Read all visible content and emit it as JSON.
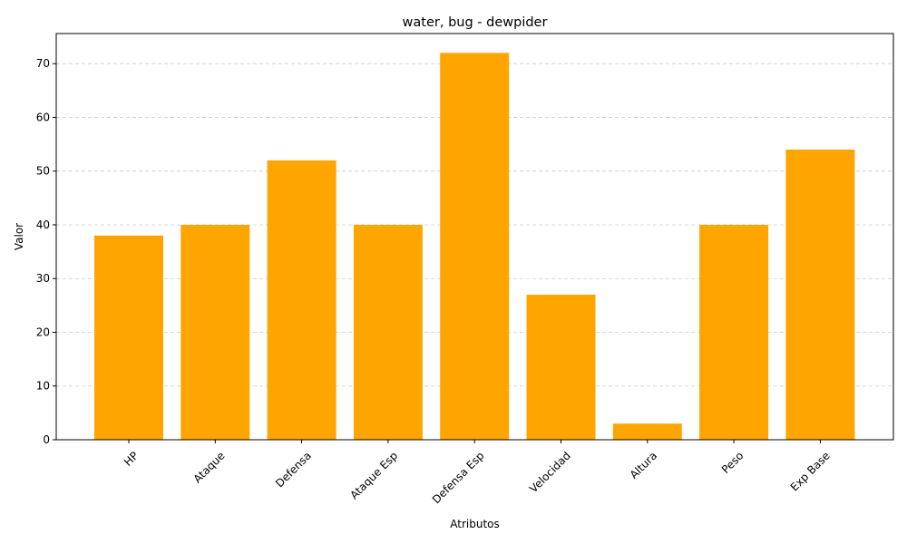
{
  "chart_data": {
    "type": "bar",
    "title": "water, bug - dewpider",
    "xlabel": "Atributos",
    "ylabel": "Valor",
    "categories": [
      "HP",
      "Ataque",
      "Defensa",
      "Ataque Esp",
      "Defensa Esp",
      "Velocidad",
      "Altura",
      "Peso",
      "Exp Base"
    ],
    "values": [
      38,
      40,
      52,
      40,
      72,
      27,
      3,
      40,
      54
    ],
    "ylim": [
      0,
      75.6
    ],
    "yticks": [
      0,
      10,
      20,
      30,
      40,
      50,
      60,
      70
    ],
    "grid": "y-dashed",
    "bar_color": "#ffa500",
    "grid_color": "#cccccc"
  }
}
